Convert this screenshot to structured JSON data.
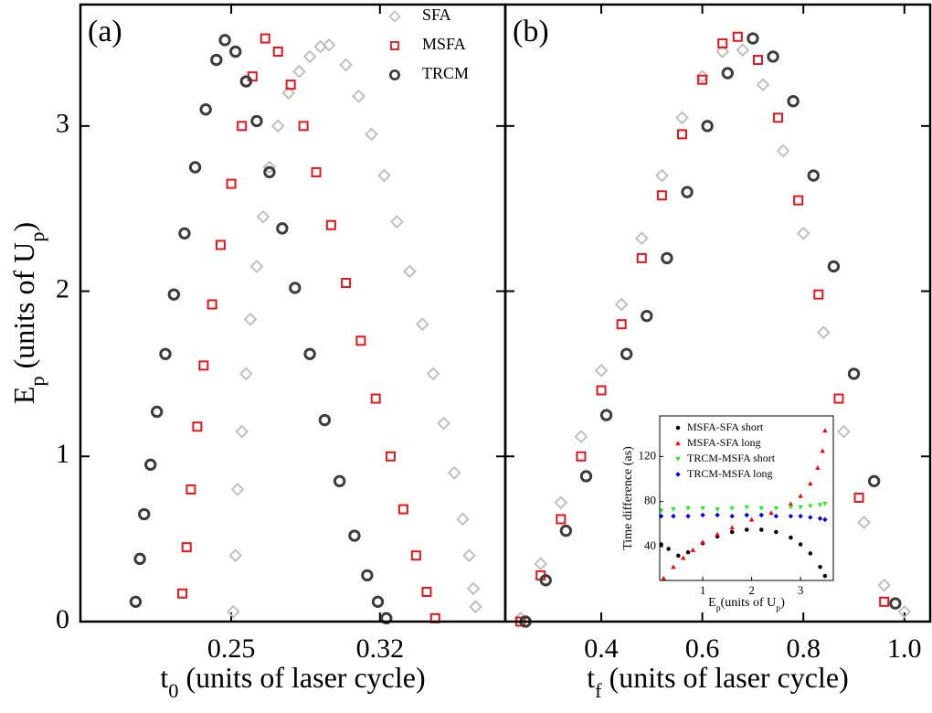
{
  "chart_data": [
    {
      "type": "scatter",
      "panel_label": "(a)",
      "xlabel": [
        "t",
        "0",
        " (units of laser cycle)"
      ],
      "ylabel": [
        "E",
        "p",
        " (units of U",
        "p",
        ")"
      ],
      "xlim": [
        0.179,
        0.379
      ],
      "ylim": [
        0,
        3.735
      ],
      "xticks": [
        0.25,
        0.32
      ],
      "yticks": [
        0,
        1,
        2,
        3
      ],
      "legend": "upper right",
      "series": [
        {
          "name": "SFA",
          "color": "#c0c0c0",
          "marker": "diamond",
          "x": [
            0.251,
            0.252,
            0.253,
            0.255,
            0.257,
            0.259,
            0.262,
            0.265,
            0.268,
            0.272,
            0.277,
            0.282,
            0.287,
            0.292,
            0.296,
            0.304,
            0.31,
            0.316,
            0.322,
            0.328,
            0.334,
            0.34,
            0.345,
            0.35,
            0.355,
            0.359,
            0.362,
            0.364,
            0.365
          ],
          "values": [
            0.06,
            0.4,
            0.8,
            1.15,
            1.5,
            1.83,
            2.15,
            2.45,
            2.75,
            3.0,
            3.2,
            3.33,
            3.42,
            3.48,
            3.49,
            3.37,
            3.18,
            2.95,
            2.7,
            2.42,
            2.12,
            1.8,
            1.5,
            1.2,
            0.9,
            0.62,
            0.4,
            0.2,
            0.09
          ]
        },
        {
          "name": "MSFA",
          "color": "#e8141b",
          "marker": "square",
          "x": [
            0.227,
            0.229,
            0.231,
            0.234,
            0.237,
            0.241,
            0.245,
            0.25,
            0.255,
            0.26,
            0.266,
            0.272,
            0.278,
            0.284,
            0.29,
            0.297,
            0.304,
            0.311,
            0.318,
            0.325,
            0.331,
            0.337,
            0.342,
            0.346
          ],
          "values": [
            0.17,
            0.45,
            0.8,
            1.18,
            1.55,
            1.92,
            2.28,
            2.65,
            3.0,
            3.3,
            3.53,
            3.45,
            3.25,
            3.0,
            2.72,
            2.4,
            2.05,
            1.7,
            1.35,
            1.0,
            0.68,
            0.4,
            0.18,
            0.02
          ]
        },
        {
          "name": "TRCM",
          "color": "#3c3c3c",
          "marker": "circle",
          "x": [
            0.205,
            0.207,
            0.209,
            0.212,
            0.215,
            0.219,
            0.223,
            0.228,
            0.233,
            0.238,
            0.243,
            0.247,
            0.252,
            0.257,
            0.262,
            0.268,
            0.274,
            0.28,
            0.287,
            0.294,
            0.301,
            0.308,
            0.314,
            0.319,
            0.323
          ],
          "values": [
            0.12,
            0.38,
            0.65,
            0.95,
            1.27,
            1.62,
            1.98,
            2.35,
            2.75,
            3.1,
            3.4,
            3.52,
            3.45,
            3.27,
            3.03,
            2.72,
            2.38,
            2.02,
            1.62,
            1.22,
            0.85,
            0.52,
            0.28,
            0.12,
            0.02
          ]
        }
      ]
    },
    {
      "type": "scatter",
      "panel_label": "(b)",
      "xlabel": [
        "t",
        "f",
        " (units of laser cycle)"
      ],
      "xlim": [
        0.21,
        1.051
      ],
      "ylim": [
        0,
        3.735
      ],
      "xticks": [
        0.4,
        0.6,
        0.8,
        {
          "value": 1.0,
          "label": "1.0"
        }
      ],
      "yticks": [
        0,
        1,
        2,
        3
      ],
      "series": [
        {
          "color": "#c0c0c0",
          "marker": "diamond",
          "x": [
            0.24,
            0.28,
            0.32,
            0.36,
            0.4,
            0.44,
            0.48,
            0.52,
            0.56,
            0.6,
            0.64,
            0.68,
            0.72,
            0.76,
            0.8,
            0.84,
            0.88,
            0.92,
            0.96,
            1.0
          ],
          "values": [
            0.02,
            0.35,
            0.72,
            1.12,
            1.52,
            1.92,
            2.32,
            2.7,
            3.05,
            3.3,
            3.45,
            3.46,
            3.25,
            2.85,
            2.35,
            1.75,
            1.15,
            0.6,
            0.22,
            0.06
          ]
        },
        {
          "color": "#e8141b",
          "marker": "square",
          "x": [
            0.24,
            0.28,
            0.32,
            0.36,
            0.4,
            0.44,
            0.48,
            0.52,
            0.56,
            0.6,
            0.64,
            0.67,
            0.71,
            0.75,
            0.79,
            0.83,
            0.87,
            0.91,
            0.96
          ],
          "values": [
            0.0,
            0.28,
            0.62,
            1.0,
            1.4,
            1.8,
            2.2,
            2.58,
            2.95,
            3.28,
            3.5,
            3.54,
            3.4,
            3.05,
            2.55,
            1.98,
            1.35,
            0.75,
            0.12
          ]
        },
        {
          "color": "#3c3c3c",
          "marker": "circle",
          "x": [
            0.25,
            0.29,
            0.33,
            0.37,
            0.41,
            0.45,
            0.49,
            0.53,
            0.57,
            0.61,
            0.65,
            0.7,
            0.74,
            0.78,
            0.82,
            0.86,
            0.9,
            0.94,
            0.982
          ],
          "values": [
            0.0,
            0.25,
            0.55,
            0.88,
            1.25,
            1.62,
            1.85,
            2.2,
            2.6,
            3.0,
            3.32,
            3.53,
            3.42,
            3.15,
            2.7,
            2.15,
            1.5,
            0.85,
            0.11
          ]
        }
      ]
    },
    {
      "type": "scatter",
      "xlabel": [
        "E",
        "p",
        "(units of U",
        "p",
        ")"
      ],
      "ylabel": [
        "Time difference (as)"
      ],
      "xlim": [
        0.12,
        3.67
      ],
      "ylim": [
        10,
        156
      ],
      "xticks": [
        1,
        2,
        3
      ],
      "yticks": [
        40,
        80,
        120
      ],
      "legend": "upper left",
      "series": [
        {
          "name": "MSFA-SFA short",
          "color": "#000000",
          "marker": "dot",
          "x": [
            0.15,
            0.3,
            0.5,
            0.7,
            1.0,
            1.3,
            1.6,
            1.9,
            2.2,
            2.5,
            2.8,
            3.0,
            3.2,
            3.4,
            3.5
          ],
          "values": [
            42,
            38,
            32,
            35,
            43,
            49,
            53,
            55,
            55,
            53,
            48,
            42,
            34,
            22,
            14
          ]
        },
        {
          "name": "MSFA-SFA long",
          "color": "#ff0000",
          "marker": "triangle-up",
          "x": [
            0.2,
            0.4,
            0.6,
            0.8,
            1.0,
            1.3,
            1.6,
            2.0,
            2.4,
            2.8,
            3.0,
            3.2,
            3.35,
            3.45,
            3.5
          ],
          "values": [
            12,
            22,
            30,
            37,
            44,
            51,
            57,
            64,
            70,
            78,
            85,
            96,
            110,
            125,
            143
          ]
        },
        {
          "name": "TRCM-MSFA short",
          "color": "#22ee22",
          "marker": "triangle-down",
          "x": [
            0.15,
            0.4,
            0.7,
            1.0,
            1.3,
            1.6,
            1.9,
            2.2,
            2.5,
            2.8,
            3.0,
            3.2,
            3.4,
            3.5
          ],
          "values": [
            72,
            73,
            74,
            74,
            73,
            74,
            75,
            74,
            74,
            75,
            75,
            76,
            77,
            78
          ]
        },
        {
          "name": "TRCM-MSFA long",
          "color": "#0000ee",
          "marker": "diamond-fill",
          "x": [
            0.15,
            0.4,
            0.7,
            1.0,
            1.3,
            1.6,
            1.9,
            2.2,
            2.5,
            2.8,
            3.0,
            3.2,
            3.4,
            3.5
          ],
          "values": [
            67,
            67,
            67,
            68,
            68,
            67,
            68,
            68,
            67,
            67,
            67,
            66,
            65,
            64
          ]
        }
      ]
    }
  ]
}
